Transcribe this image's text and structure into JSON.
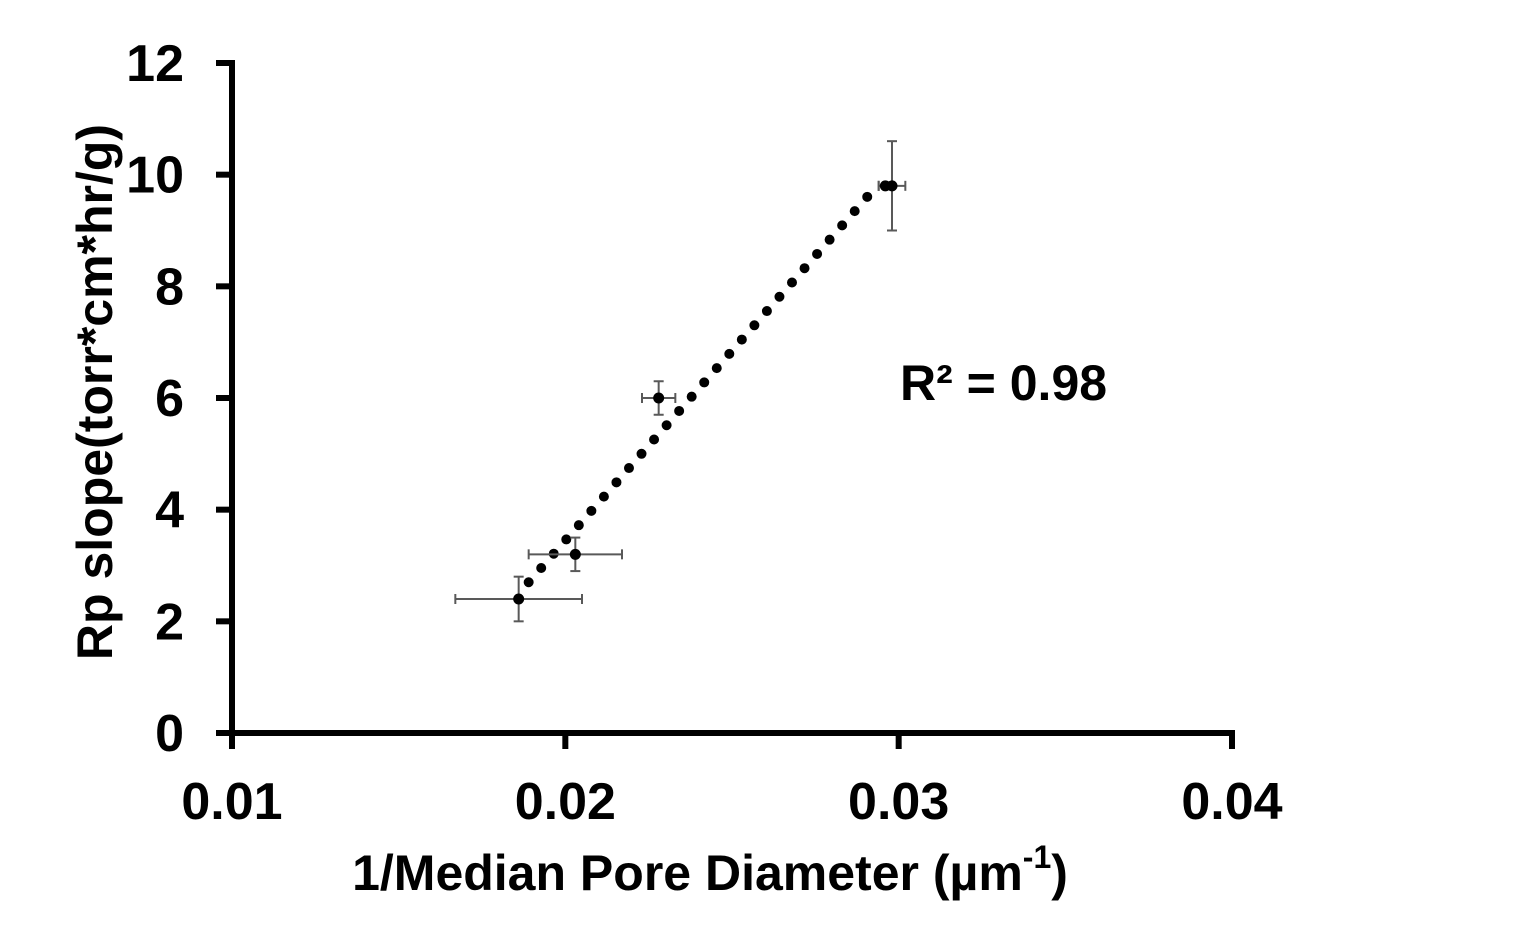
{
  "chart_data": {
    "type": "scatter",
    "xlabel": "1/Median Pore Diameter (µm",
    "xlabel_sup": "-1",
    "xlabel_suffix": ")",
    "ylabel": "Rp slope(torr*cm*hr/g)",
    "xlim": [
      0.01,
      0.04
    ],
    "ylim": [
      0,
      12
    ],
    "x_ticks": [
      "0.01",
      "0.02",
      "0.03",
      "0.04"
    ],
    "y_ticks": [
      "0",
      "2",
      "4",
      "6",
      "8",
      "10",
      "12"
    ],
    "x_tick_values": [
      0.01,
      0.02,
      0.03,
      0.04
    ],
    "y_tick_values": [
      0,
      2,
      4,
      6,
      8,
      10,
      12
    ],
    "grid": false,
    "points": [
      {
        "x": 0.0186,
        "y": 2.4,
        "xerr": 0.0019,
        "yerr": 0.4
      },
      {
        "x": 0.0203,
        "y": 3.2,
        "xerr": 0.0014,
        "yerr": 0.3
      },
      {
        "x": 0.0228,
        "y": 6.0,
        "xerr": 0.0005,
        "yerr": 0.3
      },
      {
        "x": 0.0296,
        "y": 9.8,
        "xerr": 0.0002,
        "yerr": 0.0
      },
      {
        "x": 0.0298,
        "y": 9.8,
        "xerr": 0.0004,
        "yerr": 0.8
      }
    ],
    "trendline": {
      "type": "linear",
      "style": "dotted",
      "x_start": 0.0189,
      "x_end": 0.0292,
      "y_start": 2.7,
      "y_end": 9.7
    },
    "annotation": "R² = 0.98",
    "colors": {
      "markers": "#000000",
      "error_bars": "#595959",
      "axes": "#000000",
      "trendline": "#000000"
    }
  }
}
